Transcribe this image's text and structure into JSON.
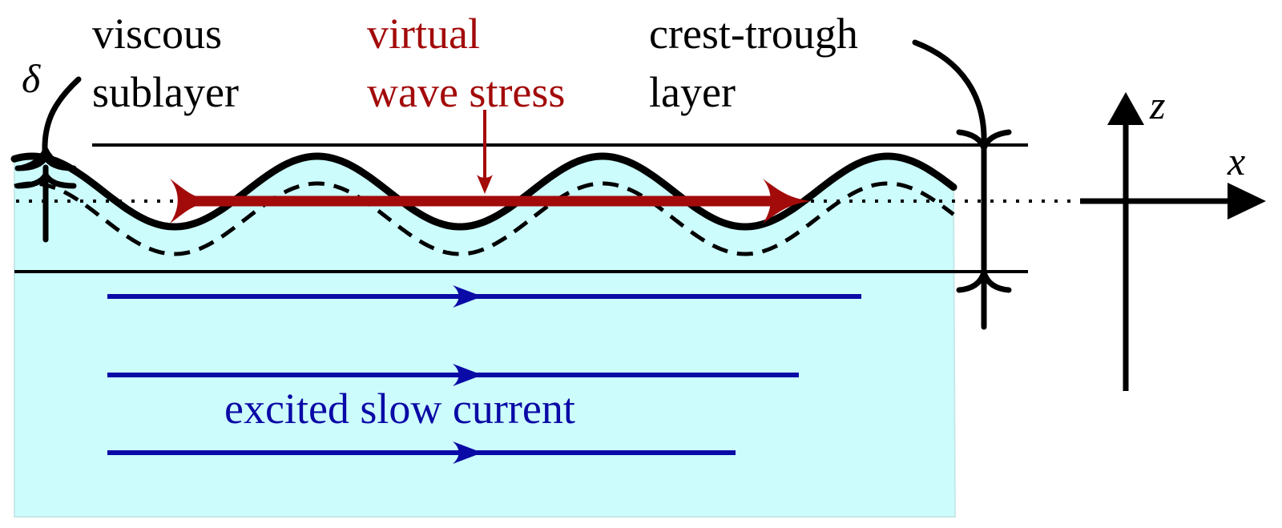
{
  "labels": {
    "viscous_line1": "viscous",
    "viscous_line2": "sublayer",
    "virtual_line1": "virtual",
    "virtual_line2": "wave stress",
    "crest_line1": "crest-trough",
    "crest_line2": "layer",
    "current": "excited slow current",
    "delta": "δ",
    "z_axis": "z",
    "x_axis": "x"
  },
  "colors": {
    "water": "#ccfcfc",
    "stroke": "#000000",
    "stress": "#a30a0a",
    "current": "#0a0aa6"
  }
}
